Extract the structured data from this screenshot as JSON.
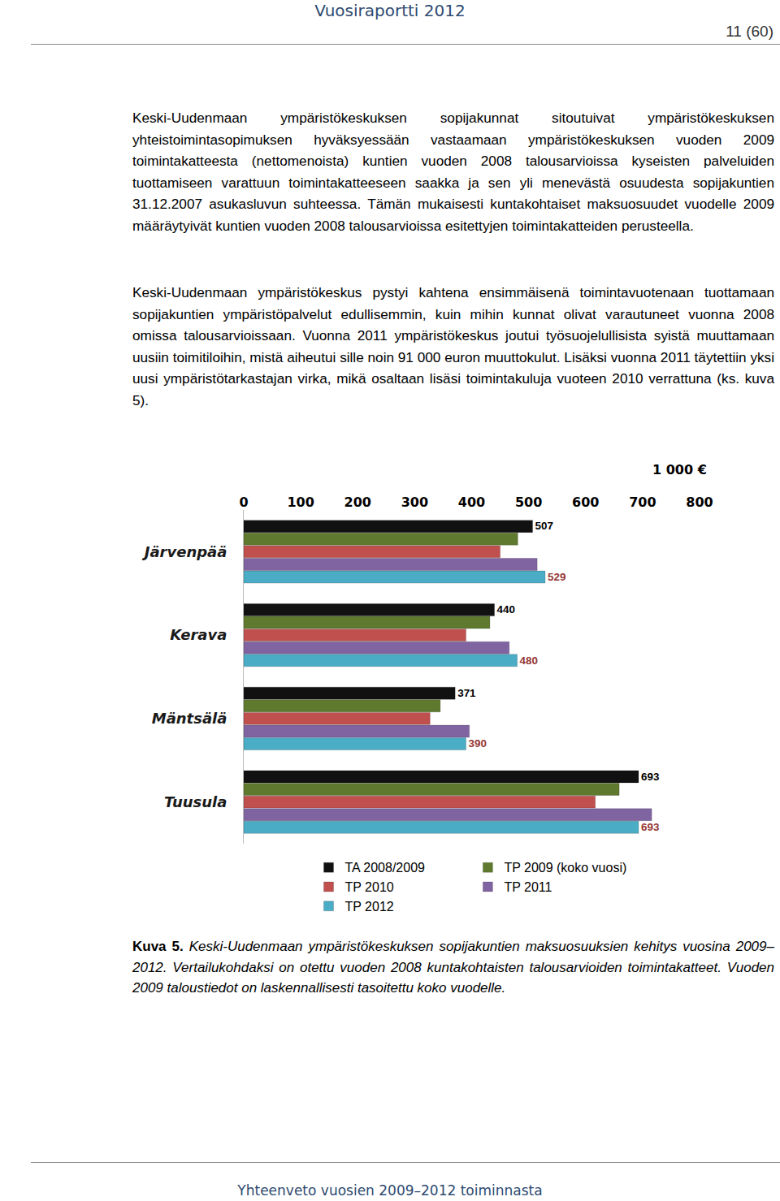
{
  "header": "Vuosiraportti 2012",
  "page_number": "11 (60)",
  "paragraphs": [
    "Keski-Uudenmaan ympäristökeskuksen sopijakunnat sitoutuivat ympäristökeskuksen yhteistoimintasopimuksen hyväksyessään vastaamaan ympäristökeskuksen vuoden 2009 toimintakatteesta (nettomenoista) kuntien vuoden 2008 talousarvioissa kyseisten palveluiden tuottamiseen varattuun toimintakatteeseen saakka ja sen yli menevästä osuudesta sopijakuntien 31.12.2007 asukasluvun suhteessa. Tämän mukaisesti kuntakohtaiset maksuosuudet vuodelle 2009 määräytyivät kuntien vuoden 2008 talousarvioissa esitettyjen toimintakatteiden perusteella.",
    "Keski-Uudenmaan ympäristökeskus pystyi kahtena ensimmäisenä toimintavuotenaan tuottamaan sopijakuntien ympäristöpalvelut edullisemmin, kuin mihin kunnat olivat varautuneet vuonna 2008 omissa talousarvioissaan. Vuonna 2011 ympäristökeskus joutui työsuojelullisista syistä muuttamaan uusiin toimitiloihin, mistä aiheutui sille noin 91 000 euron muuttokulut. Lisäksi vuonna 2011 täytettiin yksi uusi ympäristötarkastajan virka, mikä osaltaan lisäsi toimintakuluja vuoteen 2010 verrattuna (ks. kuva 5)."
  ],
  "chart_data": {
    "type": "bar",
    "orientation": "horizontal",
    "xlabel": "1 000 €",
    "categories": [
      "Järvenpää",
      "Kerava",
      "Mäntsälä",
      "Tuusula"
    ],
    "series": [
      {
        "name": "TA 2008/2009",
        "color": "#111111",
        "values": [
          507,
          440,
          371,
          693
        ],
        "data_labels": true
      },
      {
        "name": "TP 2009 (koko vuosi)",
        "color": "#5f7a2e",
        "values": [
          481,
          432,
          345,
          659
        ]
      },
      {
        "name": "TP 2010",
        "color": "#c0504d",
        "values": [
          450,
          390,
          327,
          617
        ]
      },
      {
        "name": "TP 2011",
        "color": "#8064a2",
        "values": [
          515,
          466,
          396,
          716
        ]
      },
      {
        "name": "TP 2012",
        "color": "#4bacc6",
        "values": [
          529,
          480,
          390,
          693
        ],
        "data_labels": true
      }
    ],
    "xlim": [
      0,
      800
    ],
    "xticks": [
      0,
      100,
      200,
      300,
      400,
      500,
      600,
      700,
      800
    ],
    "grid": false,
    "legend": "bottom"
  },
  "caption": {
    "label": "Kuva 5.",
    "text": "Keski-Uudenmaan ympäristökeskuksen sopijakuntien maksuosuuksien kehitys vuosina 2009–2012. Vertailukohdaksi on otettu vuoden 2008 kuntakohtaisten talousarvioiden toimintakatteet. Vuoden 2009 taloustiedot on laskennallisesti tasoitettu koko vuodelle."
  },
  "footer": "Yhteenveto vuosien 2009–2012 toiminnasta"
}
